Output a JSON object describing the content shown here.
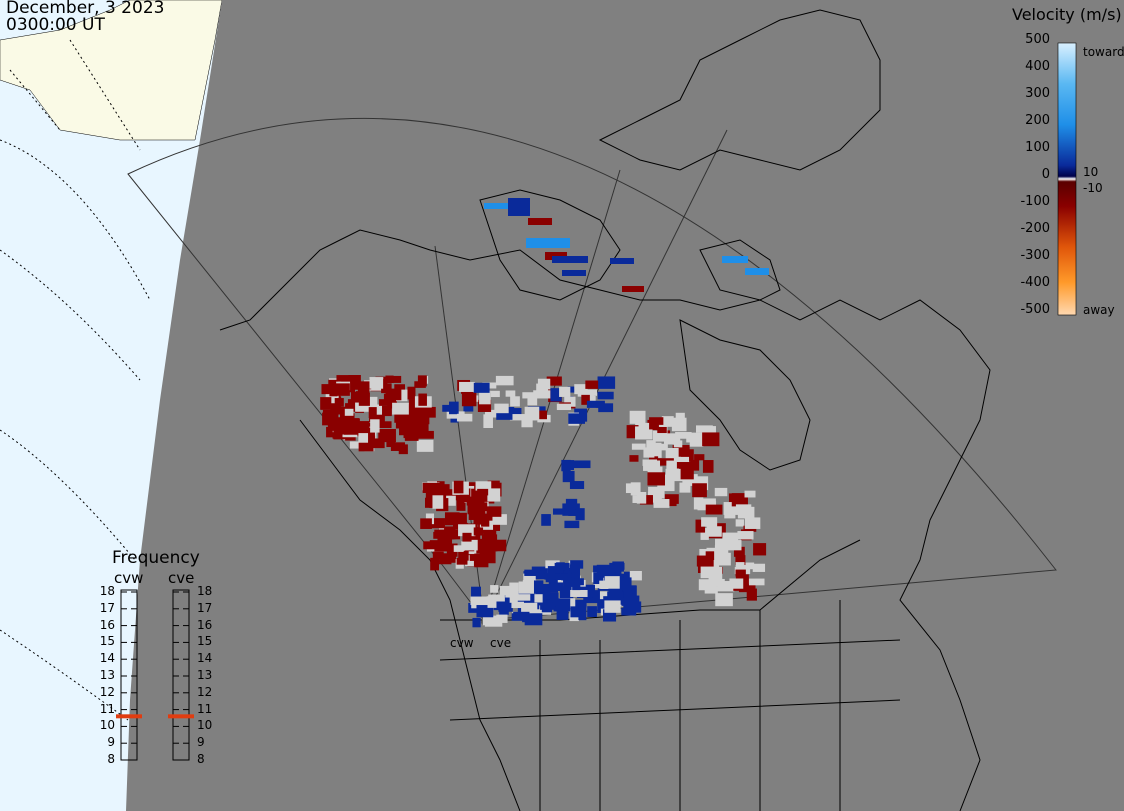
{
  "header": {
    "date": "December, 3 2023",
    "time": "0300:00 UT"
  },
  "velocity_scale": {
    "title": "Velocity (m/s)",
    "ticks": [
      "500",
      "400",
      "300",
      "200",
      "100",
      "0",
      "-100",
      "-200",
      "-300",
      "-400",
      "-500"
    ],
    "tick_values": [
      500,
      400,
      300,
      200,
      100,
      0,
      -100,
      -200,
      -300,
      -400,
      -500
    ],
    "inner_ticks": [
      "10",
      "-10"
    ],
    "toward_label": "toward",
    "away_label": "away",
    "colors": {
      "toward_high": "#d9f0ff",
      "toward_mid": "#1f8fe8",
      "toward_low": "#0a2a9a",
      "near_zero": "#ffffff",
      "away_low": "#8a0000",
      "away_mid": "#e0560a",
      "away_high": "#ffd8b0",
      "ground_scatter": "#d2d2d2"
    }
  },
  "frequency_panel": {
    "title": "Frequency",
    "radars": [
      "cvw",
      "cve"
    ],
    "levels": [
      "18",
      "17",
      "16",
      "15",
      "14",
      "13",
      "12",
      "11",
      "10",
      "9",
      "8"
    ],
    "level_values": [
      18,
      17,
      16,
      15,
      14,
      13,
      12,
      11,
      10,
      9,
      8
    ],
    "current_mhz": {
      "cvw": 10.6,
      "cve": 10.6
    },
    "marker_color": "#e03c10"
  },
  "sites": {
    "cvw": "cvw",
    "cve": "cve"
  },
  "map_colors": {
    "night": "#808080",
    "land_lit": "#fafae6",
    "ocean_lit": "#e8f6ff",
    "coast": "#000000"
  }
}
